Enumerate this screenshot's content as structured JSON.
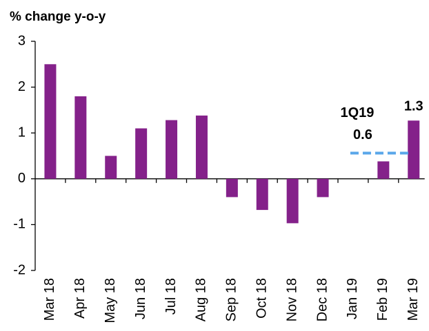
{
  "chart_data": {
    "type": "bar",
    "title": "% change y-o-y",
    "categories": [
      "Mar 18",
      "Apr 18",
      "May 18",
      "Jun 18",
      "Jul 18",
      "Aug 18",
      "Sep 18",
      "Oct 18",
      "Nov 18",
      "Dec 18",
      "Jan 19",
      "Feb 19",
      "Mar 19"
    ],
    "values": [
      2.5,
      1.8,
      0.5,
      1.1,
      1.28,
      1.38,
      -0.4,
      -0.68,
      -0.97,
      -0.4,
      null,
      0.38,
      1.27
    ],
    "value_labels": [
      null,
      null,
      null,
      null,
      null,
      null,
      null,
      null,
      null,
      null,
      null,
      null,
      "1.3"
    ],
    "color": "#84218a",
    "ylim": [
      -2,
      3
    ],
    "yticks": [
      -2,
      -1,
      0,
      1,
      2,
      3
    ],
    "annotation": {
      "text": "1Q19",
      "value": 0.56,
      "label": "0.6",
      "color": "#5aa7ea"
    }
  }
}
